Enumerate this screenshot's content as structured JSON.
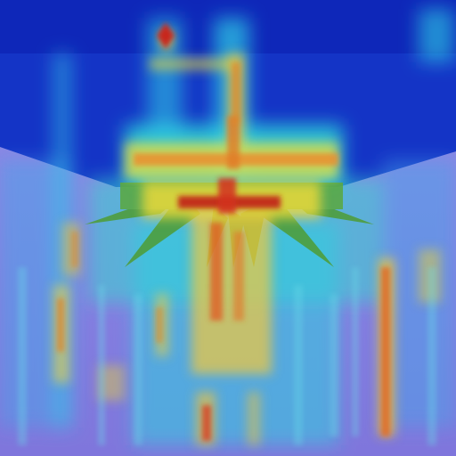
{
  "image": {
    "kind": "attention heatmap overlay",
    "colormap": "jet",
    "colors": {
      "cold": "#0a1fb0",
      "cool": "#3a5fe6",
      "low": "#2fd0e6",
      "mid": "#f6e23a",
      "warm": "#f39a2a",
      "hot": "#c8281c",
      "base_lower": "#8f86e6",
      "base_upper": "#1436c8",
      "star": "#5fa23a"
    }
  }
}
